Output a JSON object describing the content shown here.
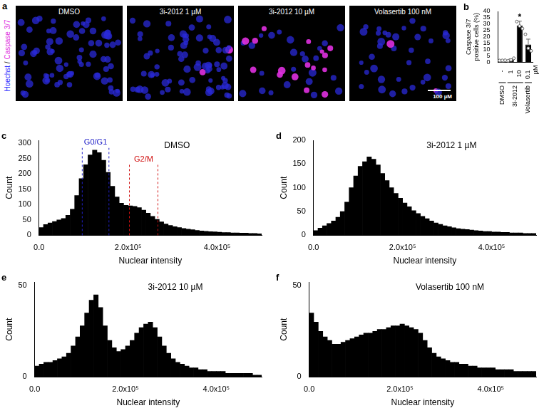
{
  "image_panel": {
    "panel": "a",
    "channels": [
      {
        "label": "Hoechst",
        "color": "#3030ff"
      },
      {
        "label": "Caspase 3/7",
        "color": "#e030e0"
      }
    ],
    "separator": " / ",
    "images": [
      {
        "title": "DMSO"
      },
      {
        "title": "3i-2012 1 µM"
      },
      {
        "title": "3i-2012 10 µM"
      },
      {
        "title": "Volasertib 100 nM"
      }
    ],
    "scale_bar": "100 µM"
  },
  "chart_data": [
    {
      "panel": "b",
      "type": "bar",
      "categories": [
        "-",
        "1",
        "10",
        "0.1"
      ],
      "group_labels": [
        "DMSO",
        "3i-2012",
        "3i-2012",
        "Volasertib"
      ],
      "xlabel": "µM",
      "ylabel": "Caspase 3/7 positive cells (%)",
      "values": [
        1.5,
        2,
        29,
        14
      ],
      "errors": [
        0.1,
        0.7,
        3.3,
        4.2
      ],
      "points": [
        [
          1.4,
          1.5,
          1.6
        ],
        [
          1.2,
          1.8,
          3.2
        ],
        [
          32,
          28.5,
          26.5
        ],
        [
          22,
          11,
          9
        ]
      ],
      "colors": [
        "#ffffff",
        "#000000",
        "#000000",
        "#000000"
      ],
      "ylim": [
        0,
        40
      ],
      "yticks": [
        0,
        5,
        10,
        15,
        20,
        25,
        30,
        35,
        40
      ],
      "annotations": [
        {
          "text": "*",
          "category": "10",
          "y": 35
        }
      ],
      "grid": false
    },
    {
      "panel": "c",
      "type": "histogram",
      "title": "DMSO",
      "xlabel": "Nuclear intensity",
      "ylabel": "Count",
      "bins": [
        0,
        10000,
        20000,
        30000,
        40000,
        50000,
        60000,
        70000,
        80000,
        90000,
        100000,
        110000,
        120000,
        130000,
        140000,
        150000,
        160000,
        170000,
        180000,
        190000,
        200000,
        210000,
        220000,
        230000,
        240000,
        250000,
        260000,
        270000,
        280000,
        290000,
        300000,
        310000,
        320000,
        330000,
        340000,
        350000,
        360000,
        370000,
        380000,
        390000,
        400000,
        410000,
        420000,
        430000,
        440000,
        450000,
        460000,
        470000,
        480000,
        490000,
        500000
      ],
      "counts": [
        25,
        35,
        40,
        45,
        50,
        55,
        65,
        85,
        130,
        185,
        230,
        262,
        278,
        270,
        245,
        205,
        160,
        125,
        105,
        98,
        96,
        94,
        90,
        82,
        72,
        62,
        52,
        44,
        37,
        32,
        28,
        25,
        22,
        20,
        18,
        16,
        14,
        13,
        12,
        11,
        10,
        9,
        9,
        8,
        8,
        7,
        7,
        6,
        6,
        5
      ],
      "color": "#000000",
      "xlim": [
        0,
        500000
      ],
      "xticks": [
        {
          "value": 0,
          "label": "0.0"
        },
        {
          "value": 200000,
          "label": "2.0x10⁵"
        },
        {
          "value": 400000,
          "label": "4.0x10⁵"
        }
      ],
      "ylim": [
        0,
        310
      ],
      "yticks": [
        0,
        50,
        100,
        150,
        200,
        250,
        300
      ],
      "annotations": [
        {
          "label": "G0/G1",
          "color": "#2020c8",
          "x": [
            97000,
            157000
          ],
          "y": 285
        },
        {
          "label": "G2/M",
          "color": "#d01010",
          "x": [
            203000,
            267000
          ],
          "y": 230
        }
      ],
      "grid": false
    },
    {
      "panel": "d",
      "type": "histogram",
      "title": "3i-2012 1 µM",
      "xlabel": "Nuclear intensity",
      "ylabel": "Count",
      "bins": [
        0,
        10000,
        20000,
        30000,
        40000,
        50000,
        60000,
        70000,
        80000,
        90000,
        100000,
        110000,
        120000,
        130000,
        140000,
        150000,
        160000,
        170000,
        180000,
        190000,
        200000,
        210000,
        220000,
        230000,
        240000,
        250000,
        260000,
        270000,
        280000,
        290000,
        300000,
        310000,
        320000,
        330000,
        340000,
        350000,
        360000,
        370000,
        380000,
        390000,
        400000,
        410000,
        420000,
        430000,
        440000,
        450000,
        460000,
        470000,
        480000,
        490000,
        500000
      ],
      "counts": [
        10,
        15,
        20,
        25,
        30,
        38,
        50,
        70,
        100,
        125,
        145,
        155,
        165,
        160,
        148,
        130,
        115,
        100,
        88,
        78,
        68,
        60,
        52,
        46,
        40,
        35,
        30,
        26,
        23,
        20,
        18,
        16,
        14,
        13,
        12,
        11,
        10,
        9,
        8,
        8,
        7,
        7,
        6,
        6,
        5,
        5,
        5,
        4,
        4,
        4
      ],
      "color": "#000000",
      "xlim": [
        0,
        500000
      ],
      "xticks": [
        {
          "value": 0,
          "label": "0.0"
        },
        {
          "value": 200000,
          "label": "2.0x10⁵"
        },
        {
          "value": 400000,
          "label": "4.0x10⁵"
        }
      ],
      "ylim": [
        0,
        200
      ],
      "yticks": [
        0,
        50,
        100,
        150,
        200
      ],
      "grid": false
    },
    {
      "panel": "e",
      "type": "histogram",
      "title": "3i-2012 10 µM",
      "xlabel": "Nuclear intensity",
      "ylabel": "Count",
      "bins": [
        0,
        10000,
        20000,
        30000,
        40000,
        50000,
        60000,
        70000,
        80000,
        90000,
        100000,
        110000,
        120000,
        130000,
        140000,
        150000,
        160000,
        170000,
        180000,
        190000,
        200000,
        210000,
        220000,
        230000,
        240000,
        250000,
        260000,
        270000,
        280000,
        290000,
        300000,
        310000,
        320000,
        330000,
        340000,
        350000,
        360000,
        370000,
        380000,
        390000,
        400000,
        410000,
        420000,
        430000,
        440000,
        450000,
        460000,
        470000,
        480000,
        490000,
        500000
      ],
      "counts": [
        6,
        7,
        8,
        8,
        9,
        10,
        11,
        13,
        17,
        22,
        28,
        35,
        42,
        45,
        38,
        28,
        20,
        16,
        14,
        15,
        17,
        20,
        24,
        27,
        29,
        30,
        27,
        22,
        17,
        13,
        10,
        8,
        7,
        6,
        5,
        5,
        4,
        4,
        3,
        3,
        3,
        3,
        2,
        2,
        2,
        2,
        2,
        2,
        1,
        1
      ],
      "color": "#000000",
      "xlim": [
        0,
        500000
      ],
      "xticks": [
        {
          "value": 0,
          "label": "0.0"
        },
        {
          "value": 200000,
          "label": "2.0x10⁵"
        },
        {
          "value": 400000,
          "label": "4.0x10⁵"
        }
      ],
      "ylim": [
        0,
        52
      ],
      "yticks": [
        0,
        50
      ],
      "grid": false
    },
    {
      "panel": "f",
      "type": "histogram",
      "title": "Volasertib 100 nM",
      "xlabel": "Nuclear intensity",
      "ylabel": "Count",
      "bins": [
        0,
        10000,
        20000,
        30000,
        40000,
        50000,
        60000,
        70000,
        80000,
        90000,
        100000,
        110000,
        120000,
        130000,
        140000,
        150000,
        160000,
        170000,
        180000,
        190000,
        200000,
        210000,
        220000,
        230000,
        240000,
        250000,
        260000,
        270000,
        280000,
        290000,
        300000,
        310000,
        320000,
        330000,
        340000,
        350000,
        360000,
        370000,
        380000,
        390000,
        400000,
        410000,
        420000,
        430000,
        440000,
        450000,
        460000,
        470000,
        480000,
        490000,
        500000
      ],
      "counts": [
        35,
        30,
        25,
        22,
        20,
        18,
        18,
        19,
        20,
        21,
        22,
        23,
        24,
        24,
        25,
        26,
        26,
        27,
        28,
        28,
        29,
        28,
        27,
        26,
        24,
        20,
        16,
        13,
        11,
        10,
        9,
        8,
        8,
        7,
        7,
        6,
        6,
        5,
        5,
        5,
        5,
        4,
        4,
        4,
        4,
        3,
        3,
        3,
        3,
        3
      ],
      "color": "#000000",
      "xlim": [
        0,
        500000
      ],
      "xticks": [
        {
          "value": 0,
          "label": "0.0"
        },
        {
          "value": 200000,
          "label": "2.0x10⁵"
        },
        {
          "value": 400000,
          "label": "4.0x10⁵"
        }
      ],
      "ylim": [
        0,
        52
      ],
      "yticks": [
        0,
        50
      ],
      "grid": false
    }
  ]
}
